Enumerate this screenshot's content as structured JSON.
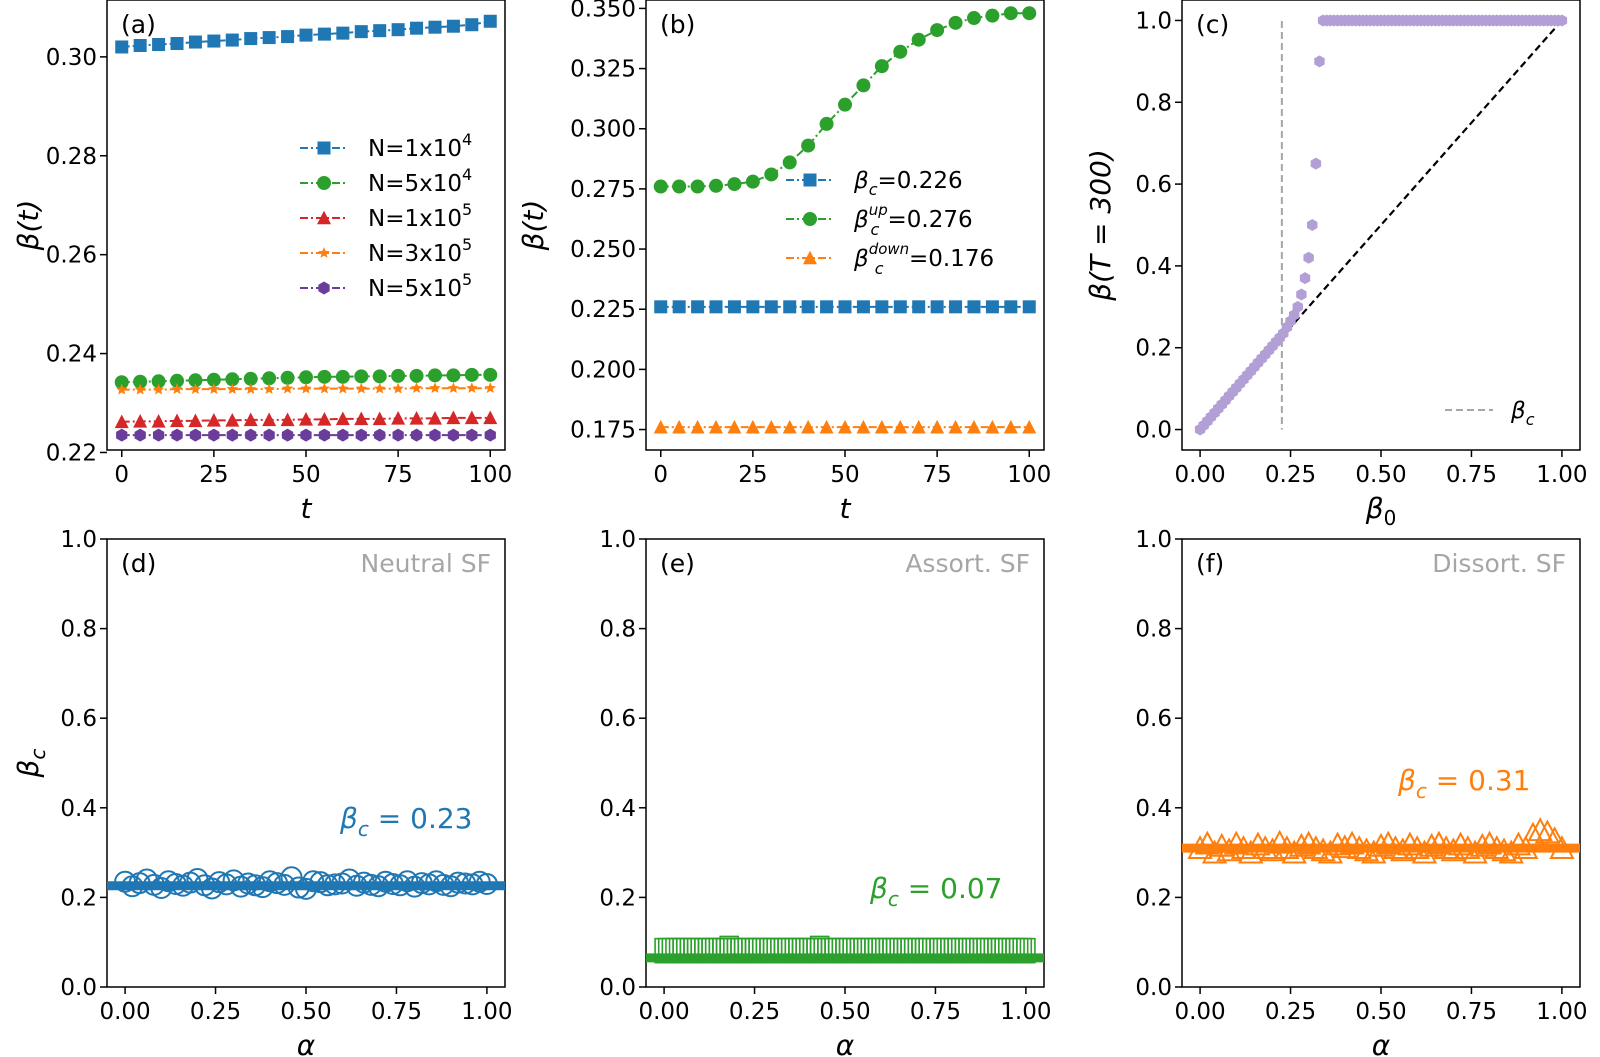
{
  "chart_data": [
    {
      "panel": "a",
      "panel_label": "(a)",
      "type": "line",
      "xlabel": "t",
      "ylabel": "β(t)",
      "xlim": [
        -4,
        104
      ],
      "ylim": [
        0.2205,
        0.3115
      ],
      "xticks": [
        0,
        25,
        50,
        75,
        100
      ],
      "xtick_labels": [
        "0",
        "25",
        "50",
        "75",
        "100"
      ],
      "yticks": [
        0.22,
        0.24,
        0.26,
        0.28,
        0.3
      ],
      "ytick_labels": [
        "0.22",
        "0.24",
        "0.26",
        "0.28",
        "0.30"
      ],
      "x": [
        0,
        5,
        10,
        15,
        20,
        25,
        30,
        35,
        40,
        45,
        50,
        55,
        60,
        65,
        70,
        75,
        80,
        85,
        90,
        95,
        100
      ],
      "series": [
        {
          "name": "N=1x10",
          "sup": "4",
          "color": "#1f77b4",
          "marker": "square",
          "linestyle": "dashdot",
          "values": [
            0.302,
            0.3023,
            0.3025,
            0.3027,
            0.303,
            0.3032,
            0.3034,
            0.3037,
            0.3039,
            0.3041,
            0.3044,
            0.3046,
            0.3048,
            0.3051,
            0.3053,
            0.3055,
            0.3058,
            0.306,
            0.3062,
            0.3065,
            0.3072
          ]
        },
        {
          "name": "N=5x10",
          "sup": "4",
          "color": "#2ca02c",
          "marker": "circle",
          "linestyle": "dashdot",
          "values": [
            0.2342,
            0.2343,
            0.2344,
            0.2345,
            0.2346,
            0.2347,
            0.2348,
            0.2349,
            0.235,
            0.2351,
            0.2352,
            0.2353,
            0.2353,
            0.2354,
            0.2354,
            0.2355,
            0.2355,
            0.2356,
            0.2356,
            0.2357,
            0.2357
          ]
        },
        {
          "name": "N=1x10",
          "sup": "5",
          "color": "#d62728",
          "marker": "triangle",
          "linestyle": "dashdot",
          "values": [
            0.2262,
            0.2263,
            0.2263,
            0.2264,
            0.2264,
            0.2265,
            0.2265,
            0.2266,
            0.2266,
            0.2266,
            0.2267,
            0.2267,
            0.2268,
            0.2268,
            0.2268,
            0.2269,
            0.2269,
            0.2269,
            0.227,
            0.227,
            0.227
          ]
        },
        {
          "name": "N=3x10",
          "sup": "5",
          "color": "#ff7f0e",
          "marker": "star",
          "linestyle": "dashdot",
          "values": [
            0.2327,
            0.2327,
            0.2327,
            0.2328,
            0.2328,
            0.2328,
            0.2328,
            0.2328,
            0.2328,
            0.2329,
            0.2329,
            0.2329,
            0.2329,
            0.2329,
            0.2329,
            0.2329,
            0.233,
            0.233,
            0.233,
            0.233,
            0.233
          ]
        },
        {
          "name": "N=5x10",
          "sup": "5",
          "color": "#6a3d9a",
          "marker": "hexagon",
          "linestyle": "dashdot",
          "values": [
            0.2235,
            0.2235,
            0.2235,
            0.2235,
            0.2235,
            0.2235,
            0.2235,
            0.2235,
            0.2235,
            0.2235,
            0.2235,
            0.2235,
            0.2235,
            0.2235,
            0.2235,
            0.2235,
            0.2235,
            0.2235,
            0.2235,
            0.2235,
            0.2235
          ]
        }
      ]
    },
    {
      "panel": "b",
      "panel_label": "(b)",
      "type": "line",
      "xlabel": "t",
      "ylabel": "β(t)",
      "xlim": [
        -4,
        104
      ],
      "ylim": [
        0.1665,
        0.3535
      ],
      "xticks": [
        0,
        25,
        50,
        75,
        100
      ],
      "xtick_labels": [
        "0",
        "25",
        "50",
        "75",
        "100"
      ],
      "yticks": [
        0.175,
        0.2,
        0.225,
        0.25,
        0.275,
        0.3,
        0.325,
        0.35
      ],
      "ytick_labels": [
        "0.175",
        "0.200",
        "0.225",
        "0.250",
        "0.275",
        "0.300",
        "0.325",
        "0.350"
      ],
      "x": [
        0,
        5,
        10,
        15,
        20,
        25,
        30,
        35,
        40,
        45,
        50,
        55,
        60,
        65,
        70,
        75,
        80,
        85,
        90,
        95,
        100
      ],
      "series": [
        {
          "name": "β",
          "sub": "c",
          "sup": "",
          "value_text": "=0.226",
          "color": "#1f77b4",
          "marker": "square",
          "linestyle": "dashdot",
          "values": [
            0.226,
            0.226,
            0.226,
            0.226,
            0.226,
            0.226,
            0.226,
            0.226,
            0.226,
            0.226,
            0.226,
            0.226,
            0.226,
            0.226,
            0.226,
            0.226,
            0.226,
            0.226,
            0.226,
            0.226,
            0.226
          ]
        },
        {
          "name": "β",
          "sub": "c",
          "sup": "up",
          "value_text": "=0.276",
          "color": "#2ca02c",
          "marker": "circle",
          "linestyle": "dashdot",
          "values": [
            0.276,
            0.276,
            0.276,
            0.2763,
            0.277,
            0.278,
            0.281,
            0.286,
            0.293,
            0.302,
            0.31,
            0.318,
            0.326,
            0.332,
            0.337,
            0.341,
            0.344,
            0.346,
            0.347,
            0.348,
            0.348
          ]
        },
        {
          "name": "β",
          "sub": "c",
          "sup": "down",
          "value_text": "=0.176",
          "color": "#ff7f0e",
          "marker": "triangle",
          "linestyle": "dashdot",
          "values": [
            0.176,
            0.176,
            0.176,
            0.176,
            0.176,
            0.176,
            0.176,
            0.176,
            0.176,
            0.176,
            0.176,
            0.176,
            0.176,
            0.176,
            0.176,
            0.176,
            0.176,
            0.176,
            0.176,
            0.176,
            0.176
          ]
        }
      ]
    },
    {
      "panel": "c",
      "panel_label": "(c)",
      "type": "scatter",
      "xlabel": "β",
      "xlabel_sub": "0",
      "ylabel": "β(T = 300)",
      "xlim": [
        -0.05,
        1.05
      ],
      "ylim": [
        -0.05,
        1.05
      ],
      "xticks": [
        0.0,
        0.25,
        0.5,
        0.75,
        1.0
      ],
      "xtick_labels": [
        "0.00",
        "0.25",
        "0.50",
        "0.75",
        "1.00"
      ],
      "yticks": [
        0.0,
        0.2,
        0.4,
        0.6,
        0.8,
        1.0
      ],
      "ytick_labels": [
        "0.0",
        "0.2",
        "0.4",
        "0.6",
        "0.8",
        "1.0"
      ],
      "beta_c": 0.226,
      "legend": {
        "label": "β",
        "sub": "c",
        "position": "lower right"
      },
      "curve": {
        "color": "#b29fd6",
        "linear_segment": {
          "x_start": 0.0,
          "x_end": 0.22,
          "step": 0.01
        },
        "points": [
          [
            0.23,
            0.235
          ],
          [
            0.24,
            0.25
          ],
          [
            0.25,
            0.265
          ],
          [
            0.26,
            0.28
          ],
          [
            0.27,
            0.3
          ],
          [
            0.28,
            0.33
          ],
          [
            0.29,
            0.37
          ],
          [
            0.3,
            0.42
          ],
          [
            0.31,
            0.5
          ],
          [
            0.32,
            0.65
          ],
          [
            0.33,
            0.9
          ]
        ],
        "plateau": {
          "x_start": 0.34,
          "x_end": 1.0,
          "step": 0.01,
          "value": 1.0
        }
      },
      "diagonal": {
        "from": [
          0,
          0
        ],
        "to": [
          1,
          1
        ],
        "color": "#000000"
      }
    },
    {
      "panel": "d",
      "panel_label": "(d)",
      "type": "scatter",
      "title": "Neutral SF",
      "xlabel": "α",
      "ylabel": "β",
      "ylabel_sub": "c",
      "xlim": [
        -0.05,
        1.05
      ],
      "ylim": [
        0.0,
        1.0
      ],
      "xticks": [
        0.0,
        0.25,
        0.5,
        0.75,
        1.0
      ],
      "xtick_labels": [
        "0.00",
        "0.25",
        "0.50",
        "0.75",
        "1.00"
      ],
      "yticks": [
        0.0,
        0.2,
        0.4,
        0.6,
        0.8,
        1.0
      ],
      "ytick_labels": [
        "0.0",
        "0.2",
        "0.4",
        "0.6",
        "0.8",
        "1.0"
      ],
      "color": "#1f77b4",
      "marker": "circle-open",
      "mean_line": 0.226,
      "annotation": {
        "text": " = 0.23",
        "symbol": "β",
        "sub": "c"
      },
      "x_start": 0.0,
      "x_end": 1.0,
      "count": 51,
      "base_value": 0.23,
      "jitter": [
        0.235,
        0.225,
        0.232,
        0.24,
        0.228,
        0.221,
        0.236,
        0.23,
        0.226,
        0.233,
        0.241,
        0.227,
        0.22,
        0.234,
        0.229,
        0.238,
        0.224,
        0.231,
        0.227,
        0.223,
        0.236,
        0.232,
        0.228,
        0.245,
        0.222,
        0.219,
        0.236,
        0.234,
        0.227,
        0.229,
        0.231,
        0.24,
        0.226,
        0.233,
        0.228,
        0.225,
        0.235,
        0.23,
        0.227,
        0.236,
        0.224,
        0.232,
        0.229,
        0.236,
        0.228,
        0.225,
        0.233,
        0.231,
        0.229,
        0.235,
        0.23
      ]
    },
    {
      "panel": "e",
      "panel_label": "(e)",
      "type": "scatter",
      "title": "Assort. SF",
      "xlabel": "α",
      "ylabel": "",
      "xlim": [
        -0.05,
        1.05
      ],
      "ylim": [
        0.0,
        1.0
      ],
      "xticks": [
        0.0,
        0.25,
        0.5,
        0.75,
        1.0
      ],
      "xtick_labels": [
        "0.00",
        "0.25",
        "0.50",
        "0.75",
        "1.00"
      ],
      "yticks": [
        0.0,
        0.2,
        0.4,
        0.6,
        0.8,
        1.0
      ],
      "ytick_labels": [
        "0.0",
        "0.2",
        "0.4",
        "0.6",
        "0.8",
        "1.0"
      ],
      "color": "#2ca02c",
      "marker": "square-open",
      "mean_line": 0.065,
      "annotation": {
        "text": " = 0.07",
        "symbol": "β",
        "sub": "c"
      },
      "x_start": 0.0,
      "x_end": 1.0,
      "count": 101,
      "base_value": 0.07,
      "spikes": [
        [
          0.18,
          0.095
        ],
        [
          0.43,
          0.095
        ]
      ]
    },
    {
      "panel": "f",
      "panel_label": "(f)",
      "type": "scatter",
      "title": "Dissort. SF",
      "xlabel": "α",
      "ylabel": "",
      "xlim": [
        -0.05,
        1.05
      ],
      "ylim": [
        0.0,
        1.0
      ],
      "xticks": [
        0.0,
        0.25,
        0.5,
        0.75,
        1.0
      ],
      "xtick_labels": [
        "0.00",
        "0.25",
        "0.50",
        "0.75",
        "1.00"
      ],
      "yticks": [
        0.0,
        0.2,
        0.4,
        0.6,
        0.8,
        1.0
      ],
      "ytick_labels": [
        "0.0",
        "0.2",
        "0.4",
        "0.6",
        "0.8",
        "1.0"
      ],
      "color": "#ff7f0e",
      "marker": "triangle-open",
      "mean_line": 0.31,
      "annotation": {
        "text": " = 0.31",
        "symbol": "β",
        "sub": "c"
      },
      "x_start": 0.0,
      "x_end": 1.0,
      "count": 51,
      "base_value": 0.31,
      "jitter": [
        0.31,
        0.32,
        0.3,
        0.315,
        0.305,
        0.32,
        0.31,
        0.3,
        0.318,
        0.31,
        0.305,
        0.322,
        0.31,
        0.3,
        0.315,
        0.32,
        0.31,
        0.305,
        0.3,
        0.318,
        0.312,
        0.32,
        0.31,
        0.305,
        0.3,
        0.315,
        0.32,
        0.31,
        0.305,
        0.318,
        0.31,
        0.3,
        0.315,
        0.32,
        0.31,
        0.305,
        0.318,
        0.31,
        0.3,
        0.315,
        0.32,
        0.31,
        0.305,
        0.3,
        0.318,
        0.31,
        0.34,
        0.35,
        0.345,
        0.33,
        0.31
      ]
    }
  ]
}
